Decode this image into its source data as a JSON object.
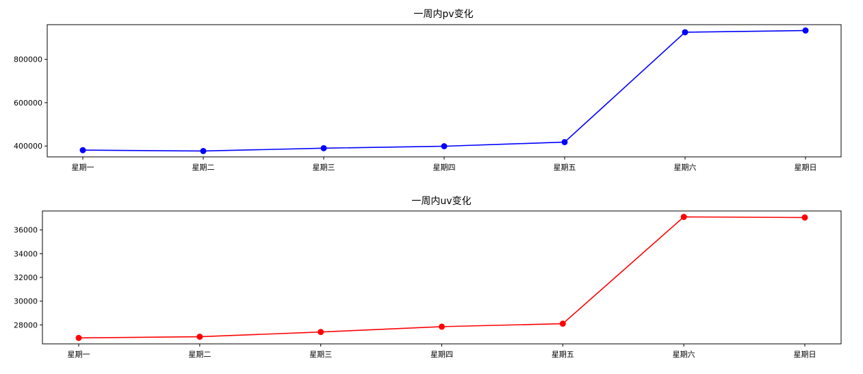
{
  "chart_data": [
    {
      "type": "line",
      "title": "一周内pv变化",
      "categories": [
        "星期一",
        "星期二",
        "星期三",
        "星期四",
        "星期五",
        "星期六",
        "星期日"
      ],
      "series": [
        {
          "color": "#0000ff",
          "values": [
            381000,
            377000,
            390000,
            399000,
            418000,
            925000,
            933000
          ]
        }
      ],
      "yticks": [
        400000,
        600000,
        800000
      ],
      "ytick_labels": [
        "400000",
        "600000",
        "800000"
      ],
      "ylim": [
        350000,
        960000
      ],
      "grid": false
    },
    {
      "type": "line",
      "title": "一周内uv变化",
      "categories": [
        "星期一",
        "星期二",
        "星期三",
        "星期四",
        "星期五",
        "星期六",
        "星期日"
      ],
      "series": [
        {
          "color": "#ff0000",
          "values": [
            26900,
            27000,
            27400,
            27850,
            28100,
            37100,
            37050
          ]
        }
      ],
      "yticks": [
        28000,
        30000,
        32000,
        34000,
        36000
      ],
      "ytick_labels": [
        "28000",
        "30000",
        "32000",
        "34000",
        "36000"
      ],
      "ylim": [
        26400,
        37600
      ],
      "grid": false
    }
  ]
}
